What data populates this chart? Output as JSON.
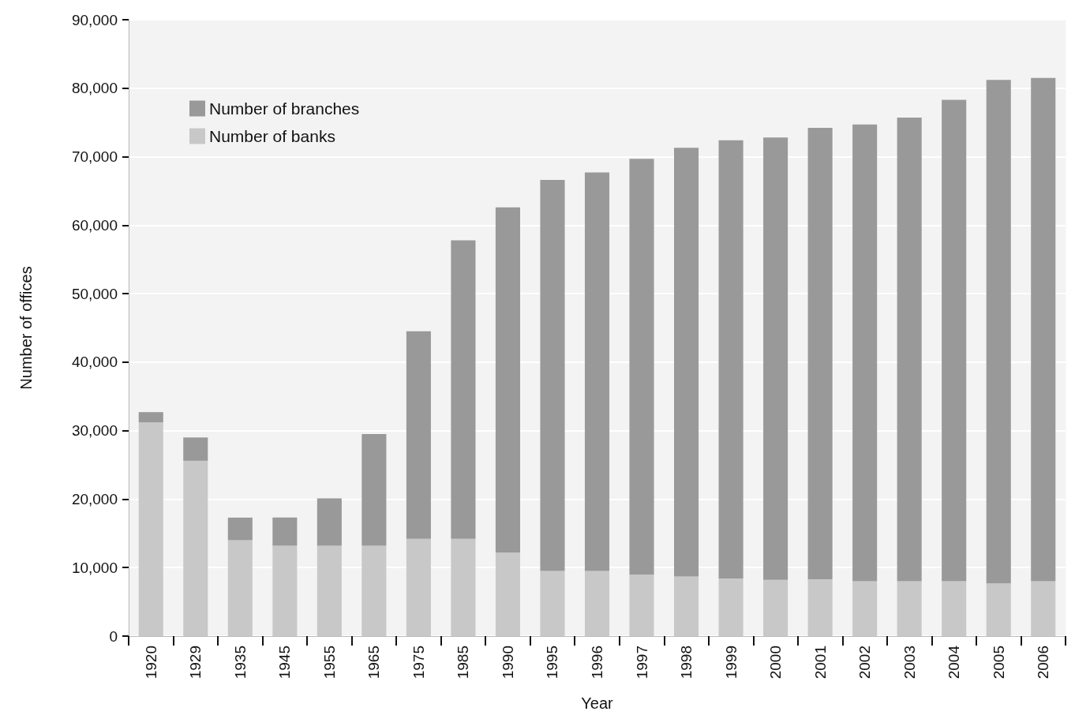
{
  "chart_data": {
    "type": "bar",
    "stacked": true,
    "xlabel": "Year",
    "ylabel": "Number of offices",
    "categories": [
      "1920",
      "1929",
      "1935",
      "1945",
      "1955",
      "1965",
      "1975",
      "1985",
      "1990",
      "1995",
      "1996",
      "1997",
      "1998",
      "1999",
      "2000",
      "2001",
      "2002",
      "2003",
      "2004",
      "2005",
      "2006"
    ],
    "series": [
      {
        "name": "Number of banks",
        "color": "#c8c8c8",
        "values": [
          31200,
          25600,
          14000,
          13200,
          13200,
          13200,
          14200,
          14200,
          12200,
          9500,
          9500,
          9000,
          8700,
          8400,
          8200,
          8300,
          8000,
          8000,
          8000,
          7700,
          8000
        ]
      },
      {
        "name": "Number of branches",
        "color": "#999999",
        "values": [
          1500,
          3400,
          3300,
          4100,
          6900,
          16300,
          30300,
          43600,
          50400,
          57100,
          58200,
          60700,
          62600,
          64000,
          64600,
          65900,
          66700,
          67700,
          70300,
          73500,
          73500
        ]
      }
    ],
    "ylim": [
      0,
      90000
    ],
    "yticks": [
      0,
      {
        "value": 10000,
        "label": "10,000"
      },
      {
        "value": 20000,
        "label": "20,000"
      },
      {
        "value": 30000,
        "label": "30,000"
      },
      {
        "value": 40000,
        "label": "40,000"
      },
      {
        "value": 50000,
        "label": "50,000"
      },
      {
        "value": 60000,
        "label": "60,000"
      },
      {
        "value": 70000,
        "label": "70,000"
      },
      {
        "value": 80000,
        "label": "80,000"
      },
      {
        "value": 90000,
        "label": "90,000"
      }
    ],
    "grid": "y",
    "legend": "top left"
  }
}
